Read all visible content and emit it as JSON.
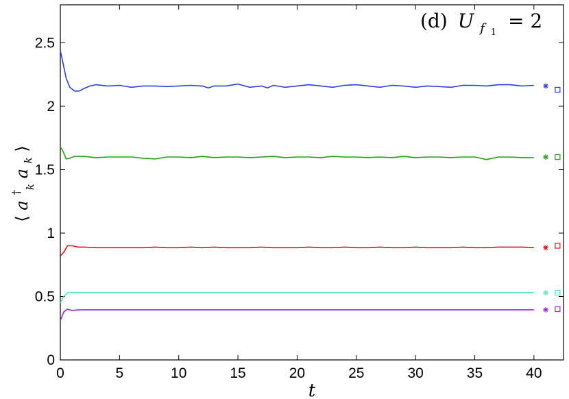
{
  "chart_data": {
    "type": "line",
    "annotation": {
      "label": "(d)",
      "var": "U",
      "sub1": "f",
      "sub2": "1",
      "eq": "= 2"
    },
    "xlabel": "t",
    "ylabel": {
      "open": "⟨",
      "a1": "a",
      "dagger": "†",
      "k1": "k",
      "a2": "a",
      "k2": "k",
      "close": "⟩"
    },
    "xlim": [
      0,
      42.5
    ],
    "ylim": [
      0,
      2.8
    ],
    "x_ticks": [
      "0",
      "5",
      "10",
      "15",
      "20",
      "25",
      "30",
      "35",
      "40"
    ],
    "y_ticks": [
      "0",
      "0.5",
      "1",
      "1.5",
      "2",
      "2.5"
    ],
    "x_tick_values": [
      0,
      5,
      10,
      15,
      20,
      25,
      30,
      35,
      40
    ],
    "y_tick_values": [
      0,
      0.5,
      1,
      1.5,
      2,
      2.5
    ],
    "series": [
      {
        "color": "#2a3fe0",
        "values": [
          [
            0,
            2.44
          ],
          [
            0.2,
            2.35
          ],
          [
            0.5,
            2.22
          ],
          [
            0.8,
            2.15
          ],
          [
            1.2,
            2.12
          ],
          [
            1.6,
            2.12
          ],
          [
            2.0,
            2.14
          ],
          [
            2.5,
            2.16
          ],
          [
            3,
            2.17
          ],
          [
            4,
            2.16
          ],
          [
            5,
            2.165
          ],
          [
            6,
            2.15
          ],
          [
            7,
            2.16
          ],
          [
            8,
            2.16
          ],
          [
            9,
            2.155
          ],
          [
            10,
            2.16
          ],
          [
            11,
            2.165
          ],
          [
            12,
            2.16
          ],
          [
            12.5,
            2.145
          ],
          [
            13,
            2.16
          ],
          [
            14,
            2.16
          ],
          [
            15,
            2.175
          ],
          [
            16,
            2.15
          ],
          [
            17,
            2.16
          ],
          [
            17.5,
            2.145
          ],
          [
            18,
            2.165
          ],
          [
            19,
            2.15
          ],
          [
            20,
            2.16
          ],
          [
            21,
            2.17
          ],
          [
            22,
            2.16
          ],
          [
            23,
            2.15
          ],
          [
            24,
            2.165
          ],
          [
            25,
            2.17
          ],
          [
            26,
            2.16
          ],
          [
            27,
            2.15
          ],
          [
            28,
            2.165
          ],
          [
            29,
            2.16
          ],
          [
            30,
            2.15
          ],
          [
            31,
            2.16
          ],
          [
            32,
            2.155
          ],
          [
            33,
            2.15
          ],
          [
            34,
            2.165
          ],
          [
            35,
            2.165
          ],
          [
            36,
            2.16
          ],
          [
            37,
            2.17
          ],
          [
            38,
            2.17
          ],
          [
            39,
            2.16
          ],
          [
            40,
            2.165
          ]
        ]
      },
      {
        "color": "#22a114",
        "values": [
          [
            0,
            1.68
          ],
          [
            0.2,
            1.65
          ],
          [
            0.5,
            1.585
          ],
          [
            0.8,
            1.59
          ],
          [
            1.2,
            1.605
          ],
          [
            2,
            1.605
          ],
          [
            3,
            1.595
          ],
          [
            4,
            1.6
          ],
          [
            5,
            1.6
          ],
          [
            6,
            1.6
          ],
          [
            7,
            1.59
          ],
          [
            8,
            1.585
          ],
          [
            9,
            1.6
          ],
          [
            10,
            1.6
          ],
          [
            11,
            1.595
          ],
          [
            12,
            1.605
          ],
          [
            13,
            1.595
          ],
          [
            14,
            1.6
          ],
          [
            15,
            1.6
          ],
          [
            16,
            1.595
          ],
          [
            17,
            1.6
          ],
          [
            18,
            1.605
          ],
          [
            19,
            1.595
          ],
          [
            20,
            1.6
          ],
          [
            21,
            1.6
          ],
          [
            22,
            1.595
          ],
          [
            23,
            1.605
          ],
          [
            24,
            1.6
          ],
          [
            25,
            1.6
          ],
          [
            26,
            1.595
          ],
          [
            27,
            1.6
          ],
          [
            28,
            1.595
          ],
          [
            29,
            1.605
          ],
          [
            30,
            1.595
          ],
          [
            31,
            1.6
          ],
          [
            32,
            1.6
          ],
          [
            33,
            1.595
          ],
          [
            34,
            1.6
          ],
          [
            35,
            1.6
          ],
          [
            36,
            1.58
          ],
          [
            36.5,
            1.59
          ],
          [
            37,
            1.6
          ],
          [
            38,
            1.6
          ],
          [
            39,
            1.595
          ],
          [
            40,
            1.595
          ]
        ]
      },
      {
        "color": "#e0121a",
        "values": [
          [
            0,
            0.82
          ],
          [
            0.3,
            0.85
          ],
          [
            0.6,
            0.9
          ],
          [
            1.0,
            0.9
          ],
          [
            1.5,
            0.89
          ],
          [
            2,
            0.89
          ],
          [
            3,
            0.885
          ],
          [
            4,
            0.885
          ],
          [
            5,
            0.885
          ],
          [
            6,
            0.885
          ],
          [
            7,
            0.885
          ],
          [
            8,
            0.89
          ],
          [
            9,
            0.885
          ],
          [
            10,
            0.885
          ],
          [
            11,
            0.89
          ],
          [
            12,
            0.885
          ],
          [
            13,
            0.89
          ],
          [
            14,
            0.885
          ],
          [
            15,
            0.885
          ],
          [
            16,
            0.885
          ],
          [
            17,
            0.89
          ],
          [
            18,
            0.885
          ],
          [
            19,
            0.885
          ],
          [
            20,
            0.885
          ],
          [
            21,
            0.89
          ],
          [
            22,
            0.885
          ],
          [
            23,
            0.885
          ],
          [
            24,
            0.89
          ],
          [
            25,
            0.885
          ],
          [
            26,
            0.885
          ],
          [
            27,
            0.89
          ],
          [
            28,
            0.885
          ],
          [
            29,
            0.885
          ],
          [
            30,
            0.89
          ],
          [
            31,
            0.885
          ],
          [
            32,
            0.885
          ],
          [
            33,
            0.885
          ],
          [
            34,
            0.89
          ],
          [
            35,
            0.885
          ],
          [
            36,
            0.885
          ],
          [
            37,
            0.89
          ],
          [
            38,
            0.89
          ],
          [
            39,
            0.89
          ],
          [
            40,
            0.885
          ]
        ]
      },
      {
        "color": "#52e8c0",
        "values": [
          [
            0,
            0.45
          ],
          [
            0.3,
            0.5
          ],
          [
            0.6,
            0.53
          ],
          [
            1,
            0.53
          ],
          [
            2,
            0.53
          ],
          [
            5,
            0.53
          ],
          [
            10,
            0.53
          ],
          [
            15,
            0.53
          ],
          [
            20,
            0.53
          ],
          [
            25,
            0.53
          ],
          [
            30,
            0.53
          ],
          [
            35,
            0.53
          ],
          [
            40,
            0.53
          ]
        ]
      },
      {
        "color": "#a025d8",
        "values": [
          [
            0,
            0.31
          ],
          [
            0.3,
            0.38
          ],
          [
            0.6,
            0.4
          ],
          [
            1,
            0.39
          ],
          [
            1.5,
            0.395
          ],
          [
            2,
            0.395
          ],
          [
            5,
            0.395
          ],
          [
            10,
            0.395
          ],
          [
            15,
            0.395
          ],
          [
            20,
            0.395
          ],
          [
            25,
            0.395
          ],
          [
            30,
            0.395
          ],
          [
            35,
            0.395
          ],
          [
            40,
            0.395
          ]
        ]
      }
    ],
    "markers": [
      {
        "color": "#2a3fe0",
        "star": [
          41,
          2.16
        ],
        "square": [
          42,
          2.13
        ]
      },
      {
        "color": "#22a114",
        "star": [
          41,
          1.6
        ],
        "square": [
          42,
          1.6
        ]
      },
      {
        "color": "#e0121a",
        "star": [
          41,
          0.885
        ],
        "square": [
          42,
          0.9
        ]
      },
      {
        "color": "#52e8c0",
        "star": [
          41,
          0.53
        ],
        "square": [
          42,
          0.53
        ]
      },
      {
        "color": "#a025d8",
        "star": [
          41,
          0.395
        ],
        "square": [
          42,
          0.4
        ]
      }
    ]
  }
}
